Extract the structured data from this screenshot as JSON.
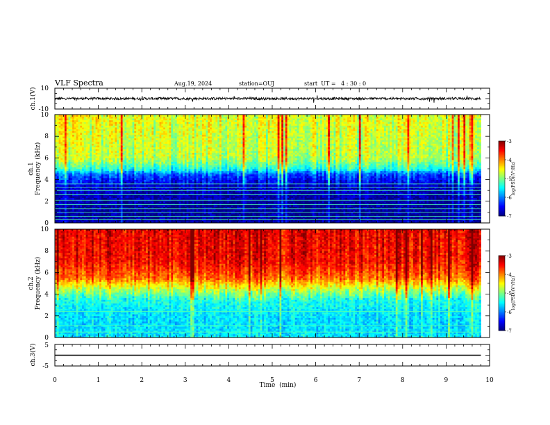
{
  "header": {
    "title": "VLF Spectra",
    "date": "Aug.19, 2024",
    "station": "station=OUJ",
    "start_ut": "start  UT =   4 : 30 : 0"
  },
  "chart_data": [
    {
      "type": "line",
      "panel": "ch1-waveform",
      "ylabel": "ch.1(V)",
      "ylim": [
        -10,
        10
      ],
      "yticks": [
        "10",
        "-10"
      ],
      "xlim": [
        0,
        10
      ],
      "trace_level": 0,
      "trace_amplitude": 1.2,
      "color": "#000000"
    },
    {
      "type": "heatmap",
      "panel": "ch1-spectrogram",
      "ylabel": "ch.1\nFrequency (kHz)",
      "ylim": [
        0,
        10
      ],
      "yticks": [
        "0",
        "2",
        "4",
        "6",
        "8",
        "10"
      ],
      "xlim": [
        0,
        10
      ],
      "data_xmax": 9.8,
      "colorbar": {
        "label": "log(PSD)(V²/Hz)",
        "range": [
          -7,
          -3
        ],
        "ticks": [
          "-3",
          "-4",
          "-5",
          "-6",
          "-7"
        ]
      },
      "profile": [
        {
          "f": 0.0,
          "v": -6.9
        },
        {
          "f": 2.0,
          "v": -6.9
        },
        {
          "f": 3.5,
          "v": -6.7
        },
        {
          "f": 4.5,
          "v": -6.2
        },
        {
          "f": 5.0,
          "v": -5.4
        },
        {
          "f": 6.0,
          "v": -4.8
        },
        {
          "f": 8.0,
          "v": -4.7
        },
        {
          "f": 10.0,
          "v": -4.6
        }
      ],
      "horizontal_lines_khz": [
        0.3,
        0.6,
        1.0,
        1.3,
        1.7,
        2.1,
        2.6,
        3.0,
        3.3,
        3.6
      ]
    },
    {
      "type": "heatmap",
      "panel": "ch2-spectrogram",
      "ylabel": "ch.2\nFrequency (kHz)",
      "ylim": [
        0,
        10
      ],
      "yticks": [
        "0",
        "2",
        "4",
        "6",
        "8",
        "10"
      ],
      "xlim": [
        0,
        10
      ],
      "data_xmax": 9.8,
      "colorbar": {
        "label": "log(PSD)(V²/Hz)",
        "range": [
          -7,
          -3
        ],
        "ticks": [
          "-3",
          "-4",
          "-5",
          "-6",
          "-7"
        ]
      },
      "profile": [
        {
          "f": 0.0,
          "v": -5.6
        },
        {
          "f": 2.0,
          "v": -5.6
        },
        {
          "f": 3.5,
          "v": -5.4
        },
        {
          "f": 4.5,
          "v": -4.7
        },
        {
          "f": 5.5,
          "v": -3.9
        },
        {
          "f": 7.0,
          "v": -3.5
        },
        {
          "f": 10.0,
          "v": -3.4
        }
      ],
      "horizontal_lines_khz": [
        0.5,
        1.1,
        2.4
      ]
    },
    {
      "type": "line",
      "panel": "ch3-waveform",
      "ylabel": "ch.3(V)",
      "ylim": [
        -5,
        5
      ],
      "yticks": [
        "5",
        "-5"
      ],
      "xlim": [
        0,
        10
      ],
      "xticks": [
        "0",
        "1",
        "2",
        "3",
        "4",
        "5",
        "6",
        "7",
        "8",
        "9",
        "10"
      ],
      "xlabel": "Time  (min)",
      "trace_level": 0,
      "trace_amplitude": 0,
      "color": "#000000"
    }
  ]
}
